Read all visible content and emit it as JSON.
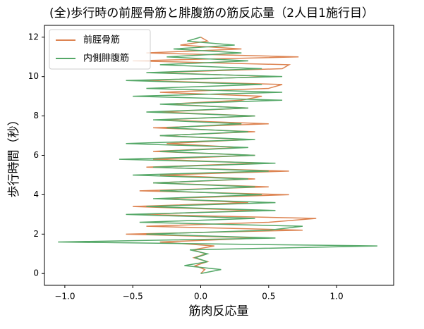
{
  "chart_data": {
    "type": "line",
    "orientation": "vertical",
    "title": "(全)歩行時の前脛骨筋と腓腹筋の筋反応量（2人目1施行目）",
    "xlabel": "筋肉反応量",
    "ylabel": "歩行時間（秒）",
    "y": [
      0,
      0.2,
      0.4,
      0.6,
      0.8,
      1.0,
      1.2,
      1.4,
      1.6,
      1.8,
      2.0,
      2.2,
      2.4,
      2.6,
      2.8,
      3.0,
      3.2,
      3.4,
      3.6,
      3.8,
      4.0,
      4.2,
      4.4,
      4.6,
      4.8,
      5.0,
      5.2,
      5.4,
      5.6,
      5.8,
      6.0,
      6.2,
      6.4,
      6.6,
      6.8,
      7.0,
      7.2,
      7.4,
      7.6,
      7.8,
      8.0,
      8.2,
      8.4,
      8.6,
      8.8,
      9.0,
      9.2,
      9.4,
      9.6,
      9.8,
      10.0,
      10.2,
      10.4,
      10.6,
      10.8,
      11.0,
      11.2,
      11.4,
      11.6,
      11.8,
      12.0
    ],
    "series": [
      {
        "name": "前脛骨筋",
        "color": "#dd8452",
        "values": [
          0,
          0.03,
          -0.04,
          0.05,
          -0.05,
          0.04,
          -0.06,
          0.1,
          -0.3,
          0.45,
          -0.55,
          0.75,
          -0.4,
          0.5,
          0.85,
          -0.45,
          0.4,
          -0.5,
          0.35,
          -0.3,
          0.65,
          -0.45,
          0.5,
          -0.35,
          0.4,
          -0.3,
          0.65,
          -0.4,
          0.45,
          -0.35,
          0.4,
          -0.35,
          0.3,
          -0.25,
          0.35,
          -0.3,
          0.4,
          -0.35,
          0.5,
          -0.3,
          0.4,
          -0.3,
          0.35,
          -0.25,
          0.3,
          0.45,
          -0.3,
          0.5,
          0.6,
          -0.45,
          0.55,
          -0.35,
          0.6,
          0.65,
          -0.5,
          0.72,
          -0.4,
          0.3,
          -0.15,
          0.05,
          0
        ]
      },
      {
        "name": "内側腓腹筋",
        "color": "#55a868",
        "values": [
          0,
          0.15,
          -0.12,
          0.05,
          -0.04,
          0.05,
          -0.08,
          1.3,
          -1.05,
          0.55,
          -0.4,
          0.5,
          0.75,
          -0.45,
          0.4,
          -0.55,
          0.55,
          -0.4,
          0.55,
          -0.35,
          0.45,
          -0.3,
          0.4,
          -0.35,
          0.35,
          -0.5,
          0.5,
          -0.35,
          0.55,
          -0.6,
          0.4,
          -0.3,
          0.35,
          -0.55,
          0.4,
          -0.3,
          0.35,
          -0.25,
          0.3,
          -0.35,
          0.4,
          -0.4,
          0.35,
          -0.3,
          0.6,
          -0.5,
          0.6,
          -0.4,
          0.45,
          -0.55,
          0.6,
          -0.4,
          0.45,
          -0.3,
          0.35,
          -0.25,
          0.3,
          -0.2,
          0.25,
          -0.1,
          0
        ]
      }
    ],
    "xlim": [
      -1.15,
      1.42
    ],
    "ylim": [
      -0.6,
      12.6
    ],
    "xticks": [
      {
        "value": -1.0,
        "label": "−1.0"
      },
      {
        "value": -0.5,
        "label": "−0.5"
      },
      {
        "value": 0,
        "label": "0.0"
      },
      {
        "value": 0.5,
        "label": "0.5"
      },
      {
        "value": 1.0,
        "label": "1.0"
      }
    ],
    "yticks": [
      0,
      2,
      4,
      6,
      8,
      10,
      12
    ],
    "legend": "upper left",
    "grid": false
  }
}
